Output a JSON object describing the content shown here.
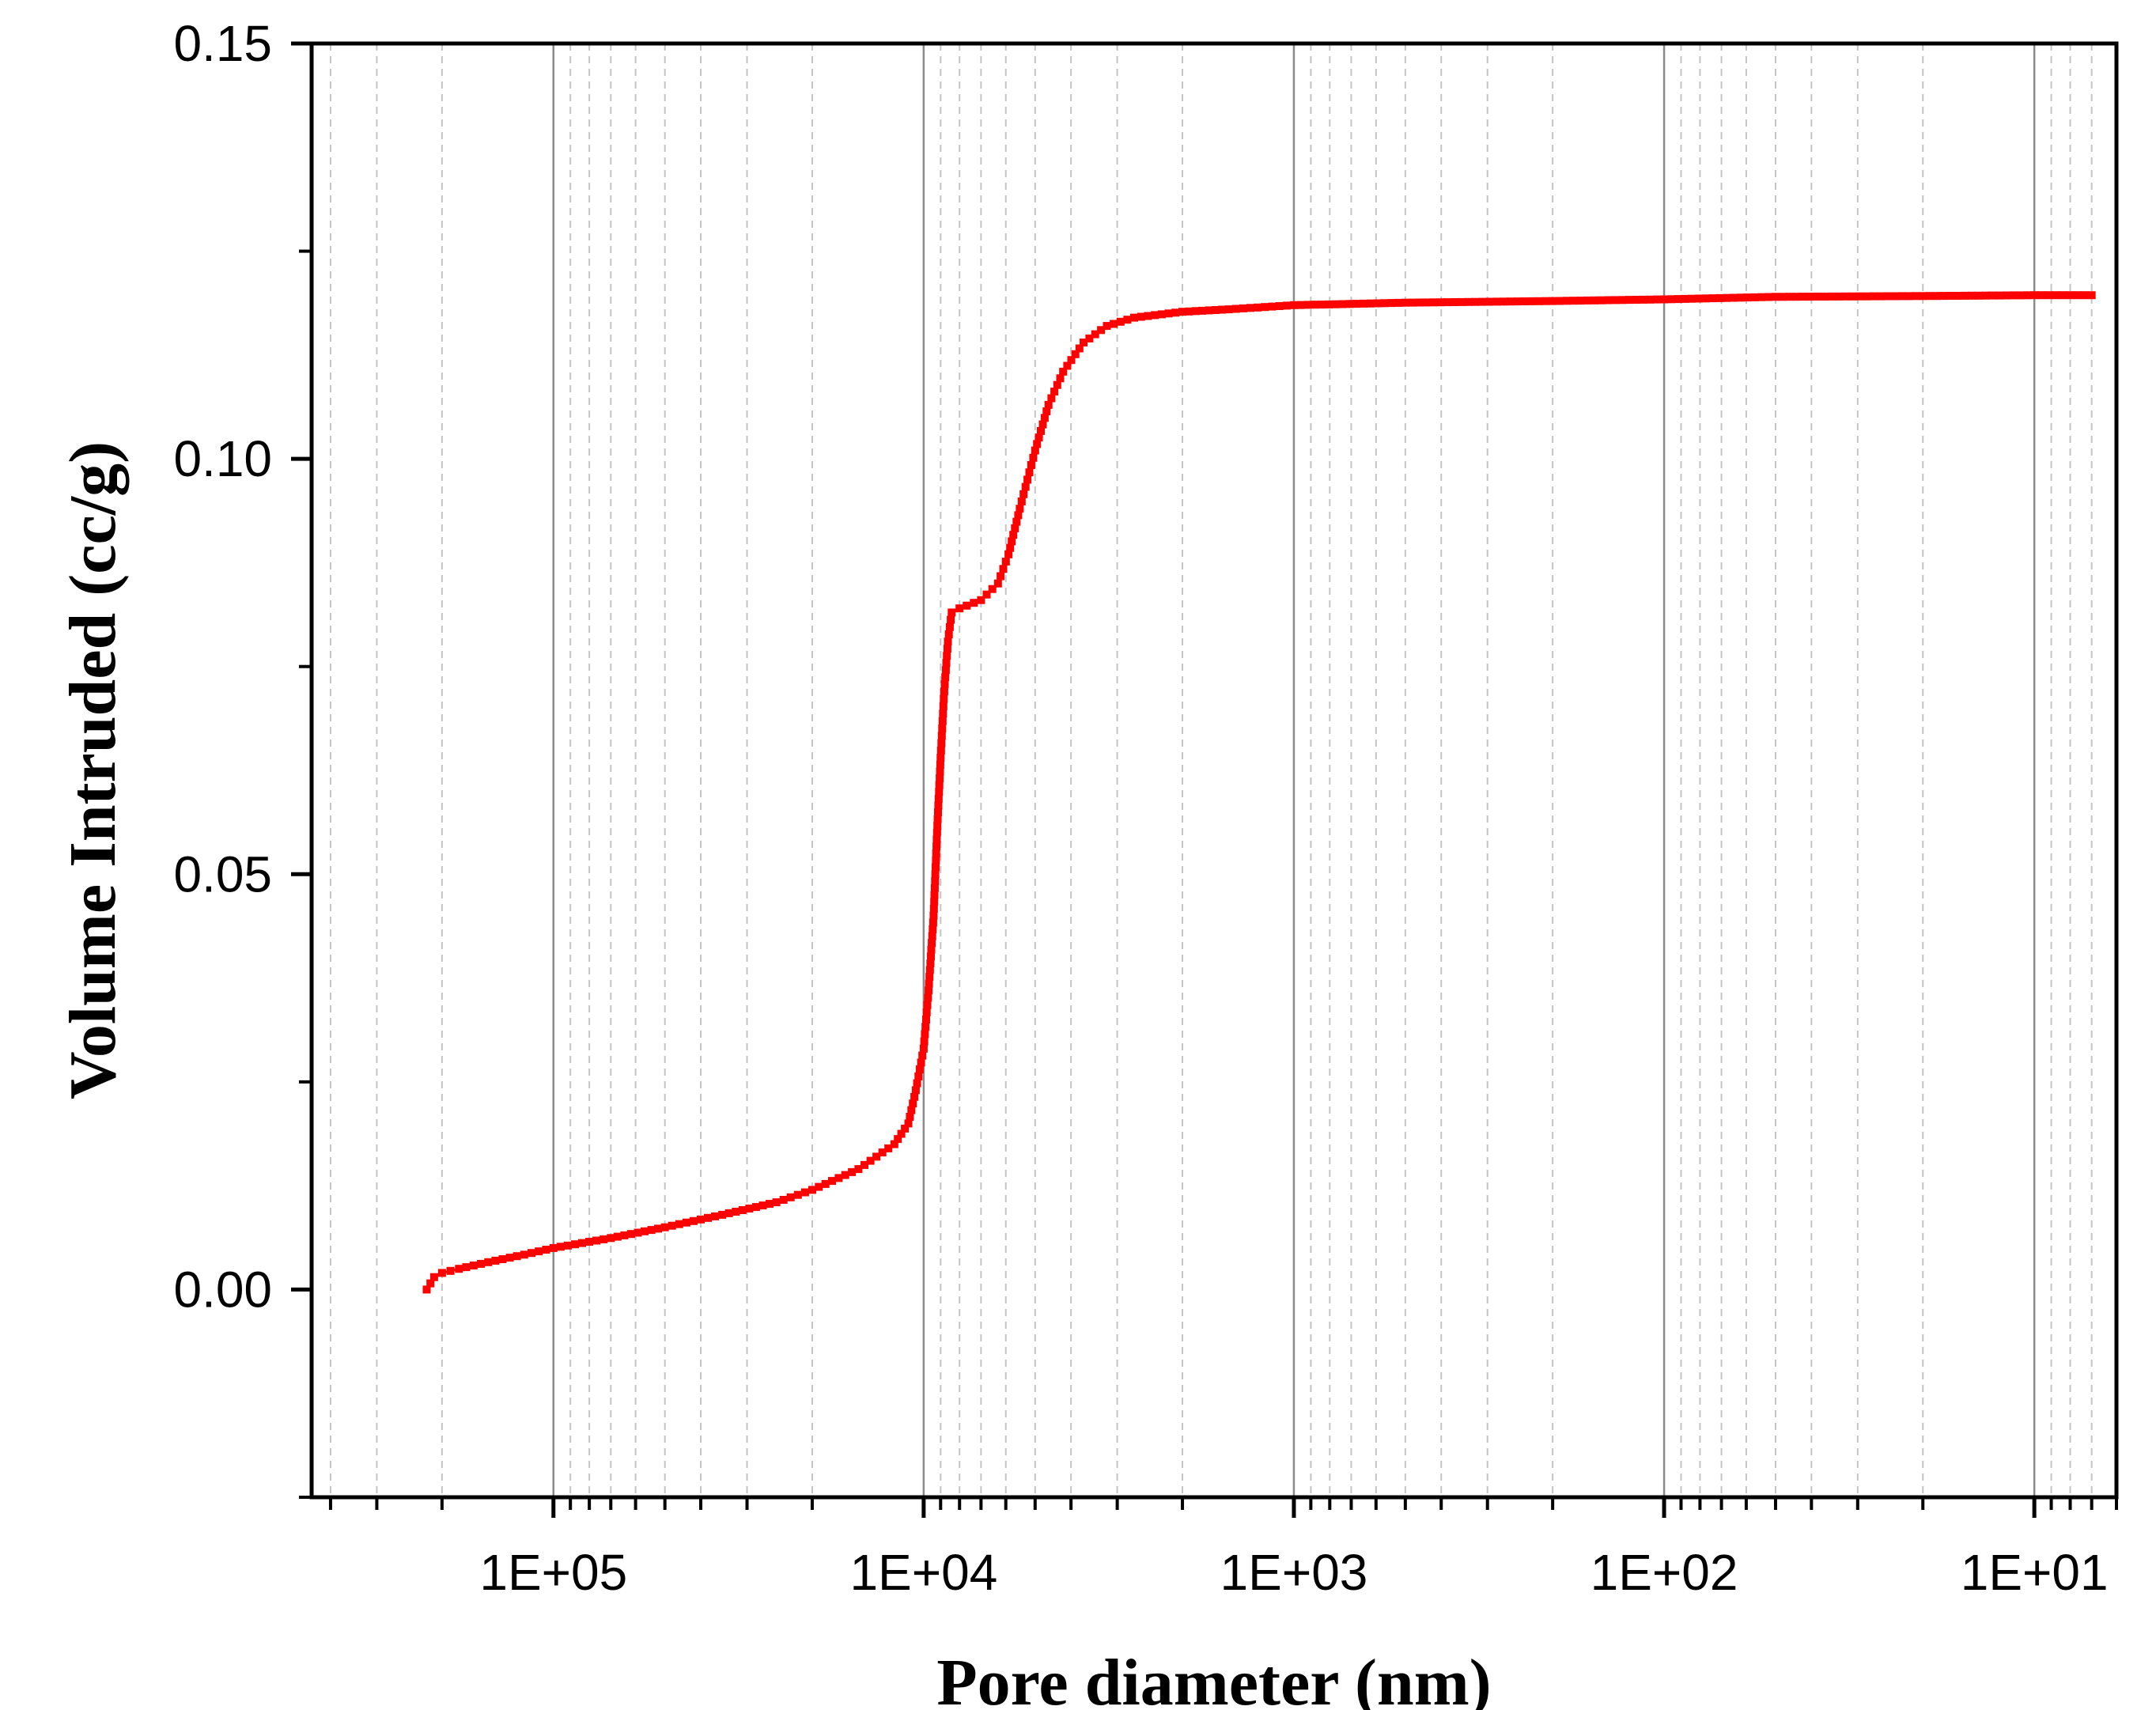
{
  "chart_data": {
    "type": "scatter",
    "xlabel": "Pore diameter (nm)",
    "ylabel": "Volume Intruded (cc/g)",
    "x_scale": "log",
    "x_reversed": true,
    "xlim": [
      450000,
      6
    ],
    "ylim": [
      -0.025,
      0.15
    ],
    "y_ticks": [
      {
        "value": 0.15,
        "label": "0.15"
      },
      {
        "value": 0.1,
        "label": "0.10"
      },
      {
        "value": 0.05,
        "label": "0.05"
      },
      {
        "value": 0.0,
        "label": "0.00"
      }
    ],
    "x_ticks": [
      {
        "value": 100000,
        "label": "1E+05"
      },
      {
        "value": 10000,
        "label": "1E+04"
      },
      {
        "value": 1000,
        "label": "1E+03"
      },
      {
        "value": 100,
        "label": "1E+02"
      },
      {
        "value": 10,
        "label": "1E+01"
      }
    ],
    "grid": {
      "major_x": true,
      "minor_x": true,
      "y": false
    },
    "color": "#ff0000",
    "series": [
      {
        "points": [
          [
            220000,
            0.0
          ],
          [
            210000,
            0.0015
          ],
          [
            200000,
            0.002
          ],
          [
            180000,
            0.0025
          ],
          [
            150000,
            0.0033
          ],
          [
            120000,
            0.0042
          ],
          [
            100000,
            0.005
          ],
          [
            70000,
            0.0062
          ],
          [
            50000,
            0.0075
          ],
          [
            35000,
            0.009
          ],
          [
            25000,
            0.0105
          ],
          [
            20000,
            0.012
          ],
          [
            15000,
            0.0145
          ],
          [
            12000,
            0.0175
          ],
          [
            11000,
            0.02
          ],
          [
            10500,
            0.024
          ],
          [
            10000,
            0.029
          ],
          [
            9700,
            0.036
          ],
          [
            9400,
            0.045
          ],
          [
            9200,
            0.055
          ],
          [
            9000,
            0.064
          ],
          [
            8800,
            0.072
          ],
          [
            8600,
            0.078
          ],
          [
            8400,
            0.0815
          ],
          [
            8000,
            0.082
          ],
          [
            7000,
            0.083
          ],
          [
            6300,
            0.085
          ],
          [
            5900,
            0.0885
          ],
          [
            5500,
            0.094
          ],
          [
            5000,
            0.101
          ],
          [
            4600,
            0.1065
          ],
          [
            4200,
            0.1105
          ],
          [
            3700,
            0.114
          ],
          [
            3200,
            0.116
          ],
          [
            2700,
            0.117
          ],
          [
            2000,
            0.1177
          ],
          [
            1500,
            0.118
          ],
          [
            1000,
            0.1185
          ],
          [
            500,
            0.1188
          ],
          [
            200,
            0.119
          ],
          [
            100,
            0.1192
          ],
          [
            50,
            0.1195
          ],
          [
            20,
            0.1196
          ],
          [
            10,
            0.1197
          ],
          [
            7,
            0.1197
          ]
        ]
      }
    ]
  }
}
